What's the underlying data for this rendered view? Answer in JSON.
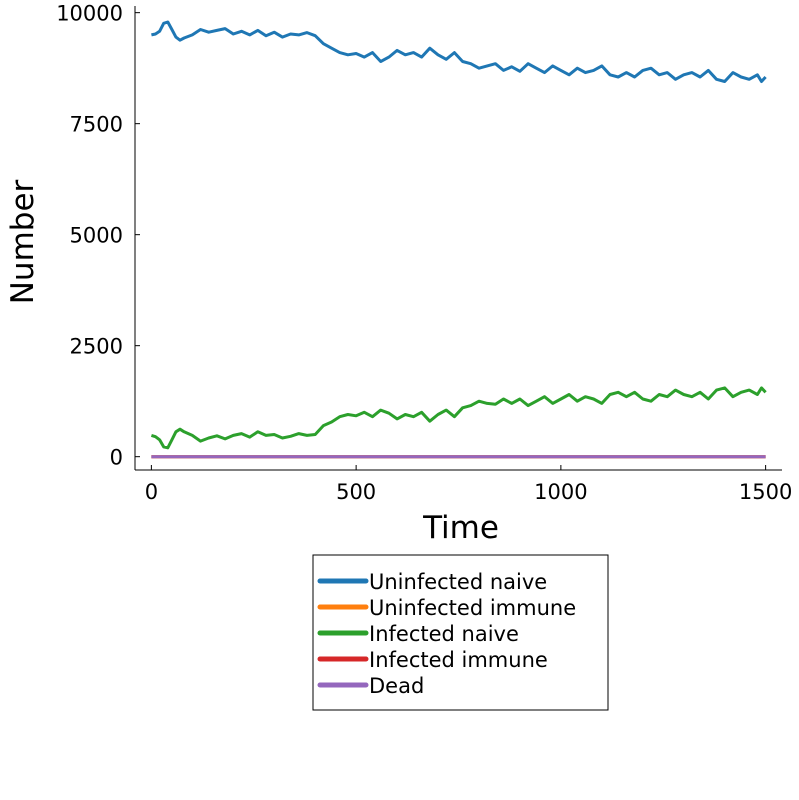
{
  "chart_data": {
    "type": "line",
    "title": "",
    "xlabel": "Time",
    "ylabel": "Number",
    "xlim": [
      -40,
      1540
    ],
    "ylim": [
      -300,
      10150
    ],
    "xticks": [
      0,
      500,
      1000,
      1500
    ],
    "yticks": [
      0,
      2500,
      5000,
      7500,
      10000
    ],
    "xtick_labels": [
      "0",
      "500",
      "1000",
      "1500"
    ],
    "ytick_labels": [
      "0",
      "2500",
      "5000",
      "7500",
      "10000"
    ],
    "grid": false,
    "legend_position": "outer-bottom",
    "series": [
      {
        "name": "Uninfected naive",
        "color": "#1f77b4",
        "x": [
          0,
          10,
          20,
          30,
          40,
          50,
          60,
          70,
          80,
          100,
          120,
          140,
          160,
          180,
          200,
          220,
          240,
          260,
          280,
          300,
          320,
          340,
          360,
          380,
          400,
          420,
          440,
          460,
          480,
          500,
          520,
          540,
          560,
          580,
          600,
          620,
          640,
          660,
          680,
          700,
          720,
          740,
          760,
          780,
          800,
          820,
          840,
          860,
          880,
          900,
          920,
          940,
          960,
          980,
          1000,
          1020,
          1040,
          1060,
          1080,
          1100,
          1120,
          1140,
          1160,
          1180,
          1200,
          1220,
          1240,
          1260,
          1280,
          1300,
          1320,
          1340,
          1360,
          1380,
          1400,
          1420,
          1440,
          1460,
          1480,
          1490,
          1500
        ],
        "y": [
          9500,
          9520,
          9580,
          9760,
          9790,
          9620,
          9450,
          9380,
          9430,
          9500,
          9620,
          9560,
          9600,
          9640,
          9520,
          9580,
          9500,
          9600,
          9480,
          9560,
          9450,
          9520,
          9500,
          9550,
          9480,
          9300,
          9200,
          9100,
          9050,
          9080,
          9000,
          9100,
          8900,
          9000,
          9150,
          9050,
          9100,
          9000,
          9200,
          9050,
          8950,
          9100,
          8900,
          8850,
          8750,
          8800,
          8850,
          8700,
          8780,
          8680,
          8850,
          8750,
          8650,
          8800,
          8700,
          8600,
          8750,
          8650,
          8700,
          8800,
          8600,
          8550,
          8650,
          8550,
          8700,
          8750,
          8600,
          8650,
          8500,
          8600,
          8650,
          8550,
          8700,
          8500,
          8450,
          8650,
          8550,
          8500,
          8600,
          8450,
          8550
        ]
      },
      {
        "name": "Uninfected immune",
        "color": "#ff7f0e",
        "x": [
          0,
          1500
        ],
        "y": [
          0,
          0
        ]
      },
      {
        "name": "Infected naive",
        "color": "#2ca02c",
        "x": [
          0,
          10,
          20,
          30,
          40,
          50,
          60,
          70,
          80,
          100,
          120,
          140,
          160,
          180,
          200,
          220,
          240,
          260,
          280,
          300,
          320,
          340,
          360,
          380,
          400,
          420,
          440,
          460,
          480,
          500,
          520,
          540,
          560,
          580,
          600,
          620,
          640,
          660,
          680,
          700,
          720,
          740,
          760,
          780,
          800,
          820,
          840,
          860,
          880,
          900,
          920,
          940,
          960,
          980,
          1000,
          1020,
          1040,
          1060,
          1080,
          1100,
          1120,
          1140,
          1160,
          1180,
          1200,
          1220,
          1240,
          1260,
          1280,
          1300,
          1320,
          1340,
          1360,
          1380,
          1400,
          1420,
          1440,
          1460,
          1480,
          1490,
          1500
        ],
        "y": [
          480,
          450,
          380,
          220,
          200,
          380,
          560,
          620,
          560,
          480,
          350,
          420,
          470,
          400,
          480,
          520,
          440,
          560,
          480,
          500,
          420,
          460,
          520,
          480,
          500,
          700,
          780,
          900,
          950,
          920,
          1000,
          900,
          1050,
          980,
          850,
          950,
          900,
          1000,
          800,
          950,
          1050,
          900,
          1100,
          1150,
          1250,
          1200,
          1180,
          1300,
          1200,
          1300,
          1150,
          1250,
          1350,
          1200,
          1300,
          1400,
          1250,
          1350,
          1300,
          1200,
          1400,
          1450,
          1350,
          1450,
          1300,
          1250,
          1400,
          1350,
          1500,
          1400,
          1350,
          1450,
          1300,
          1500,
          1550,
          1350,
          1450,
          1500,
          1400,
          1550,
          1450
        ]
      },
      {
        "name": "Infected immune",
        "color": "#d62728",
        "x": [
          0,
          1500
        ],
        "y": [
          0,
          0
        ]
      },
      {
        "name": "Dead",
        "color": "#9467bd",
        "x": [
          0,
          1500
        ],
        "y": [
          0,
          0
        ]
      }
    ]
  }
}
